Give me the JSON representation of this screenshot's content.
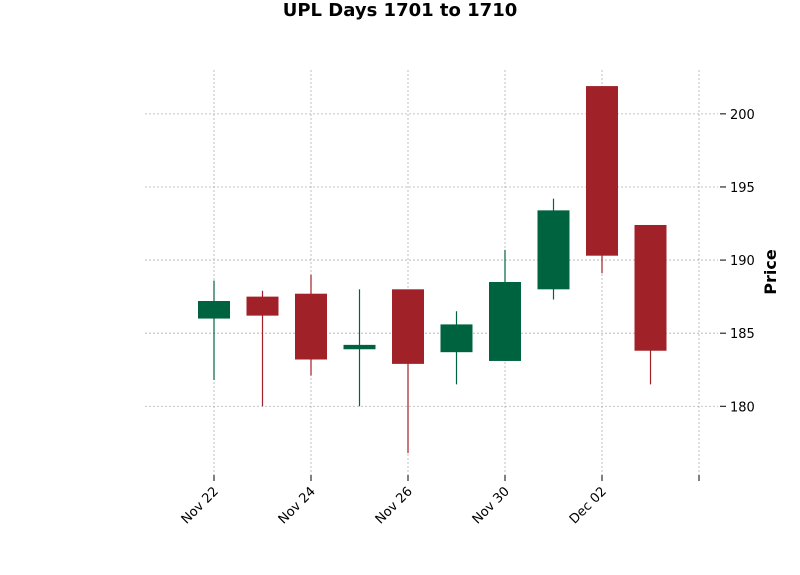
{
  "chart_data": {
    "type": "candlestick",
    "title": "UPL Days 1701 to 1710",
    "xlabel": "",
    "ylabel": "Price",
    "ylim": [
      175.3,
      203.0
    ],
    "yticks": [
      180,
      185,
      190,
      195,
      200
    ],
    "xtick_labels": [
      "Nov 22",
      "Nov 24",
      "Nov 26",
      "Nov 30",
      "Dec 02",
      ""
    ],
    "xtick_index": [
      0,
      2,
      4,
      6,
      8,
      10
    ],
    "grid": true,
    "colors": {
      "up": "#006340",
      "down": "#a02128",
      "grid": "#b0b0b0"
    },
    "candles": [
      {
        "open": 186.0,
        "high": 188.6,
        "low": 181.8,
        "close": 187.2
      },
      {
        "open": 187.5,
        "high": 187.9,
        "low": 180.0,
        "close": 186.2
      },
      {
        "open": 187.7,
        "high": 189.0,
        "low": 182.1,
        "close": 183.2
      },
      {
        "open": 183.9,
        "high": 188.0,
        "low": 180.0,
        "close": 184.2
      },
      {
        "open": 188.0,
        "high": 188.0,
        "low": 176.8,
        "close": 182.9
      },
      {
        "open": 183.7,
        "high": 186.5,
        "low": 181.5,
        "close": 185.6
      },
      {
        "open": 183.1,
        "high": 190.7,
        "low": 183.1,
        "close": 188.5
      },
      {
        "open": 188.0,
        "high": 194.2,
        "low": 187.3,
        "close": 193.4
      },
      {
        "open": 201.9,
        "high": 201.9,
        "low": 189.1,
        "close": 190.3
      },
      {
        "open": 192.4,
        "high": 192.4,
        "low": 181.5,
        "close": 183.8
      }
    ]
  }
}
